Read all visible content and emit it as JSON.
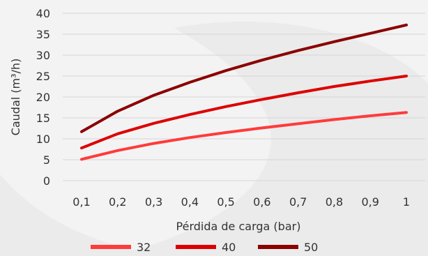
{
  "chart_data": {
    "type": "line",
    "title": "",
    "xlabel": "Pérdida de carga (bar)",
    "ylabel": "Caudal (m³/h)",
    "ylim": [
      0,
      40
    ],
    "yticks": [
      "0",
      "5",
      "10",
      "15",
      "20",
      "25",
      "30",
      "35",
      "40"
    ],
    "categories": [
      "0,1",
      "0,2",
      "0,3",
      "0,4",
      "0,5",
      "0,6",
      "0,7",
      "0,8",
      "0,9",
      "1"
    ],
    "grid": true,
    "legend_position": "bottom",
    "series": [
      {
        "name": "32",
        "color": "#ff3b3b",
        "values": [
          5.1,
          7.2,
          8.9,
          10.3,
          11.5,
          12.6,
          13.6,
          14.6,
          15.5,
          16.3
        ]
      },
      {
        "name": "40",
        "color": "#dd0000",
        "values": [
          7.8,
          11.2,
          13.7,
          15.8,
          17.7,
          19.4,
          21.0,
          22.5,
          23.8,
          25.0
        ]
      },
      {
        "name": "50",
        "color": "#8b0000",
        "values": [
          11.7,
          16.6,
          20.4,
          23.5,
          26.3,
          28.8,
          31.1,
          33.2,
          35.2,
          37.2
        ]
      }
    ]
  }
}
